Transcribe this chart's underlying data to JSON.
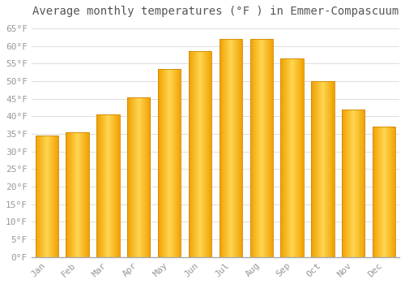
{
  "title": "Average monthly temperatures (°F ) in Emmer-Compascuum",
  "months": [
    "Jan",
    "Feb",
    "Mar",
    "Apr",
    "May",
    "Jun",
    "Jul",
    "Aug",
    "Sep",
    "Oct",
    "Nov",
    "Dec"
  ],
  "values": [
    34.5,
    35.5,
    40.5,
    45.5,
    53.5,
    58.5,
    62.0,
    62.0,
    56.5,
    50.0,
    42.0,
    37.0
  ],
  "bar_color_center": "#FFD040",
  "bar_color_edge": "#F0A000",
  "background_color": "#FFFFFF",
  "grid_color": "#DDDDDD",
  "tick_label_color": "#999999",
  "title_color": "#555555",
  "axis_line_color": "#AAAAAA",
  "ylim": [
    0,
    67
  ],
  "yticks": [
    0,
    5,
    10,
    15,
    20,
    25,
    30,
    35,
    40,
    45,
    50,
    55,
    60,
    65
  ],
  "ytick_labels": [
    "0°F",
    "5°F",
    "10°F",
    "15°F",
    "20°F",
    "25°F",
    "30°F",
    "35°F",
    "40°F",
    "45°F",
    "50°F",
    "55°F",
    "60°F",
    "65°F"
  ],
  "font_family": "monospace",
  "title_fontsize": 10,
  "tick_fontsize": 8,
  "bar_width": 0.75
}
